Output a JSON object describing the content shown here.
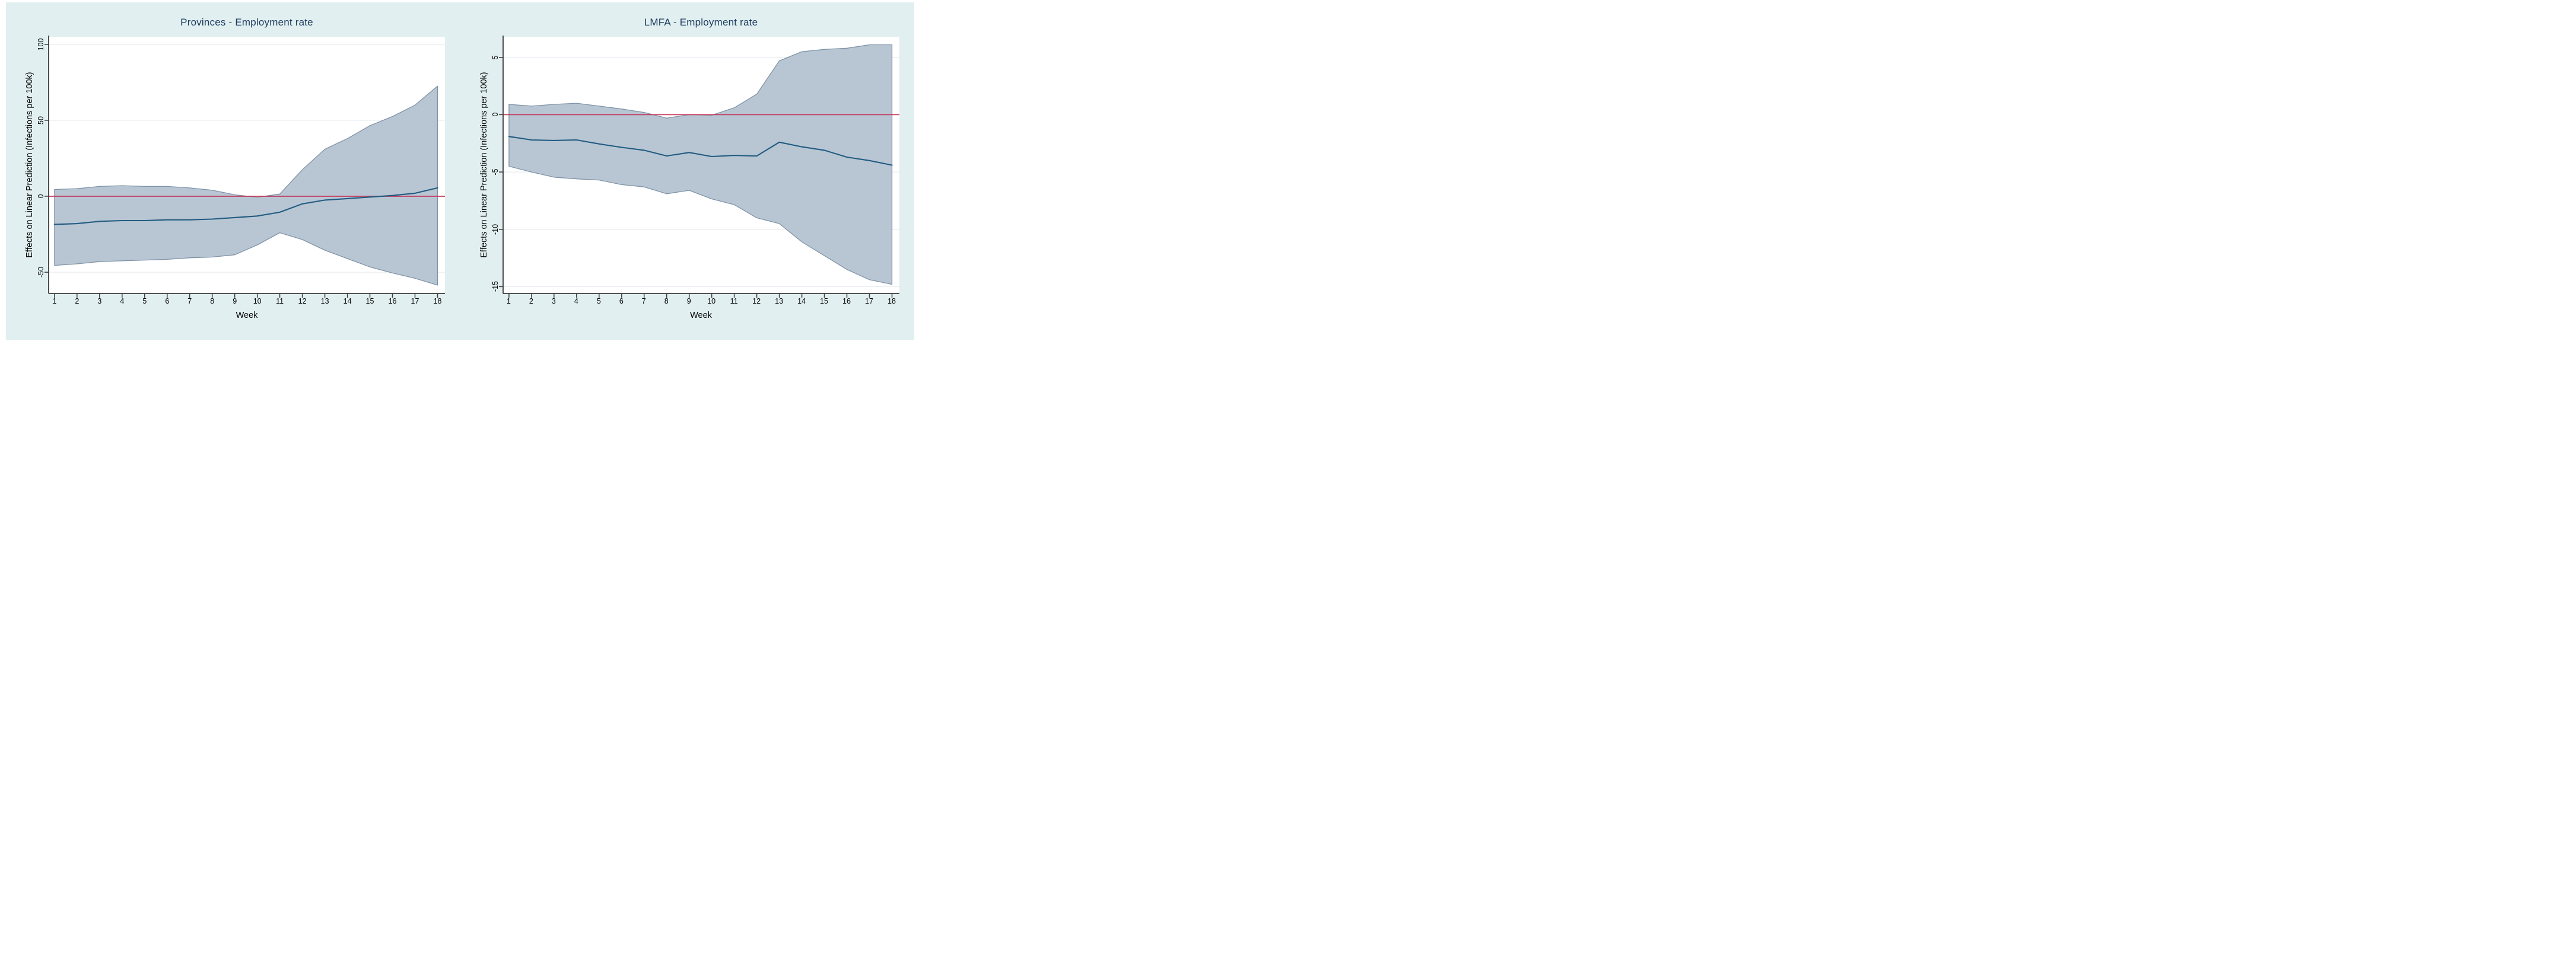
{
  "style": {
    "figure_bg": "#e1eff0",
    "plot_bg": "#ffffff",
    "grid_color": "#e9eef2",
    "axis_color": "#3c3c3c",
    "title_color": "#1b3a5e",
    "text_color": "#000000",
    "band_fill": "#b6c4d3",
    "band_stroke": "#8093a6",
    "line_color": "#225c80",
    "zero_line_color": "#c22e51"
  },
  "chart_data": [
    {
      "type": "line",
      "title": "Provinces - Employment rate",
      "xlabel": "Week",
      "ylabel": "Effects on Linear Prediction (Infections per 100k)",
      "legend": "none",
      "grid": true,
      "x": [
        1,
        2,
        3,
        4,
        5,
        6,
        7,
        8,
        9,
        10,
        11,
        12,
        13,
        14,
        15,
        16,
        17,
        18
      ],
      "xticks": [
        1,
        2,
        3,
        4,
        5,
        6,
        7,
        8,
        9,
        10,
        11,
        12,
        13,
        14,
        15,
        16,
        17,
        18
      ],
      "yticks": [
        100,
        50,
        0,
        -50
      ],
      "xlim": [
        0.74,
        18.33
      ],
      "ylim": [
        -64,
        105
      ],
      "zero_reference_line": 0,
      "series": [
        {
          "name": "Effect on linear prediction",
          "values": [
            -18.5,
            -18,
            -16.5,
            -16,
            -16,
            -15.5,
            -15.5,
            -15,
            -14,
            -13,
            -10.5,
            -5,
            -2.5,
            -1.5,
            -0.5,
            0.5,
            2,
            5.5
          ]
        },
        {
          "name": "CI upper bound",
          "values": [
            4.5,
            5,
            6.5,
            7,
            6.5,
            6.5,
            5.5,
            4,
            1,
            -0.6,
            1.5,
            17.5,
            31,
            38,
            46.5,
            52.5,
            60,
            72.5
          ]
        },
        {
          "name": "CI lower bound",
          "values": [
            -45.5,
            -44.5,
            -43,
            -42.5,
            -42,
            -41.5,
            -40.5,
            -40,
            -38.5,
            -32,
            -24,
            -28.5,
            -35.5,
            -41,
            -46.5,
            -50.5,
            -54,
            -58.5
          ]
        }
      ]
    },
    {
      "type": "line",
      "title": "LMFA - Employment rate",
      "xlabel": "Week",
      "ylabel": "Effects on Linear Prediction (Infections per 100k)",
      "legend": "none",
      "grid": true,
      "x": [
        1,
        2,
        3,
        4,
        5,
        6,
        7,
        8,
        9,
        10,
        11,
        12,
        13,
        14,
        15,
        16,
        17,
        18
      ],
      "xticks": [
        1,
        2,
        3,
        4,
        5,
        6,
        7,
        8,
        9,
        10,
        11,
        12,
        13,
        14,
        15,
        16,
        17,
        18
      ],
      "yticks": [
        5,
        0,
        -5,
        -10,
        -15
      ],
      "xlim": [
        0.74,
        18.33
      ],
      "ylim": [
        -15.6,
        6.8
      ],
      "zero_reference_line": 0,
      "series": [
        {
          "name": "Effect on linear prediction",
          "values": [
            -1.9,
            -2.2,
            -2.25,
            -2.2,
            -2.55,
            -2.85,
            -3.1,
            -3.6,
            -3.3,
            -3.65,
            -3.55,
            -3.6,
            -2.4,
            -2.8,
            -3.1,
            -3.7,
            -4,
            -4.4
          ]
        },
        {
          "name": "CI upper bound",
          "values": [
            0.9,
            0.75,
            0.9,
            1,
            0.75,
            0.5,
            0.2,
            -0.3,
            0,
            -0.05,
            0.6,
            1.8,
            4.7,
            5.5,
            5.7,
            5.8,
            6.1,
            6.1
          ]
        },
        {
          "name": "CI lower bound",
          "values": [
            -4.5,
            -5,
            -5.45,
            -5.6,
            -5.7,
            -6.1,
            -6.3,
            -6.9,
            -6.6,
            -7.35,
            -7.85,
            -9,
            -9.5,
            -11.1,
            -12.3,
            -13.5,
            -14.4,
            -14.8
          ]
        }
      ]
    }
  ]
}
